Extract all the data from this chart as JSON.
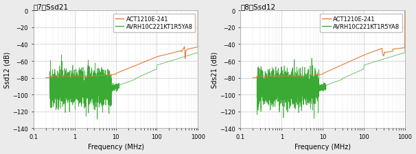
{
  "fig1_title": "图7：Ssd21",
  "fig2_title": "图8：Ssd12",
  "fig1_ylabel": "Ssd12 (dB)",
  "fig2_ylabel": "Sds21 (dB)",
  "xlabel": "Frequency (MHz)",
  "ylim": [
    -140,
    0
  ],
  "yticks": [
    0,
    -20,
    -40,
    -60,
    -80,
    -100,
    -120,
    -140
  ],
  "xlim_log": [
    0.1,
    1000
  ],
  "legend1": "ACT1210E-241",
  "legend2": "AVRH10C221KT1R5YA8",
  "orange_color": "#E87832",
  "green_color": "#3AAA35",
  "bg_color": "#EBEBEB",
  "plot_bg": "#FFFFFF",
  "grid_color": "#C8C8C8",
  "title_fontsize": 7.5,
  "label_fontsize": 7,
  "tick_fontsize": 6,
  "legend_fontsize": 6
}
